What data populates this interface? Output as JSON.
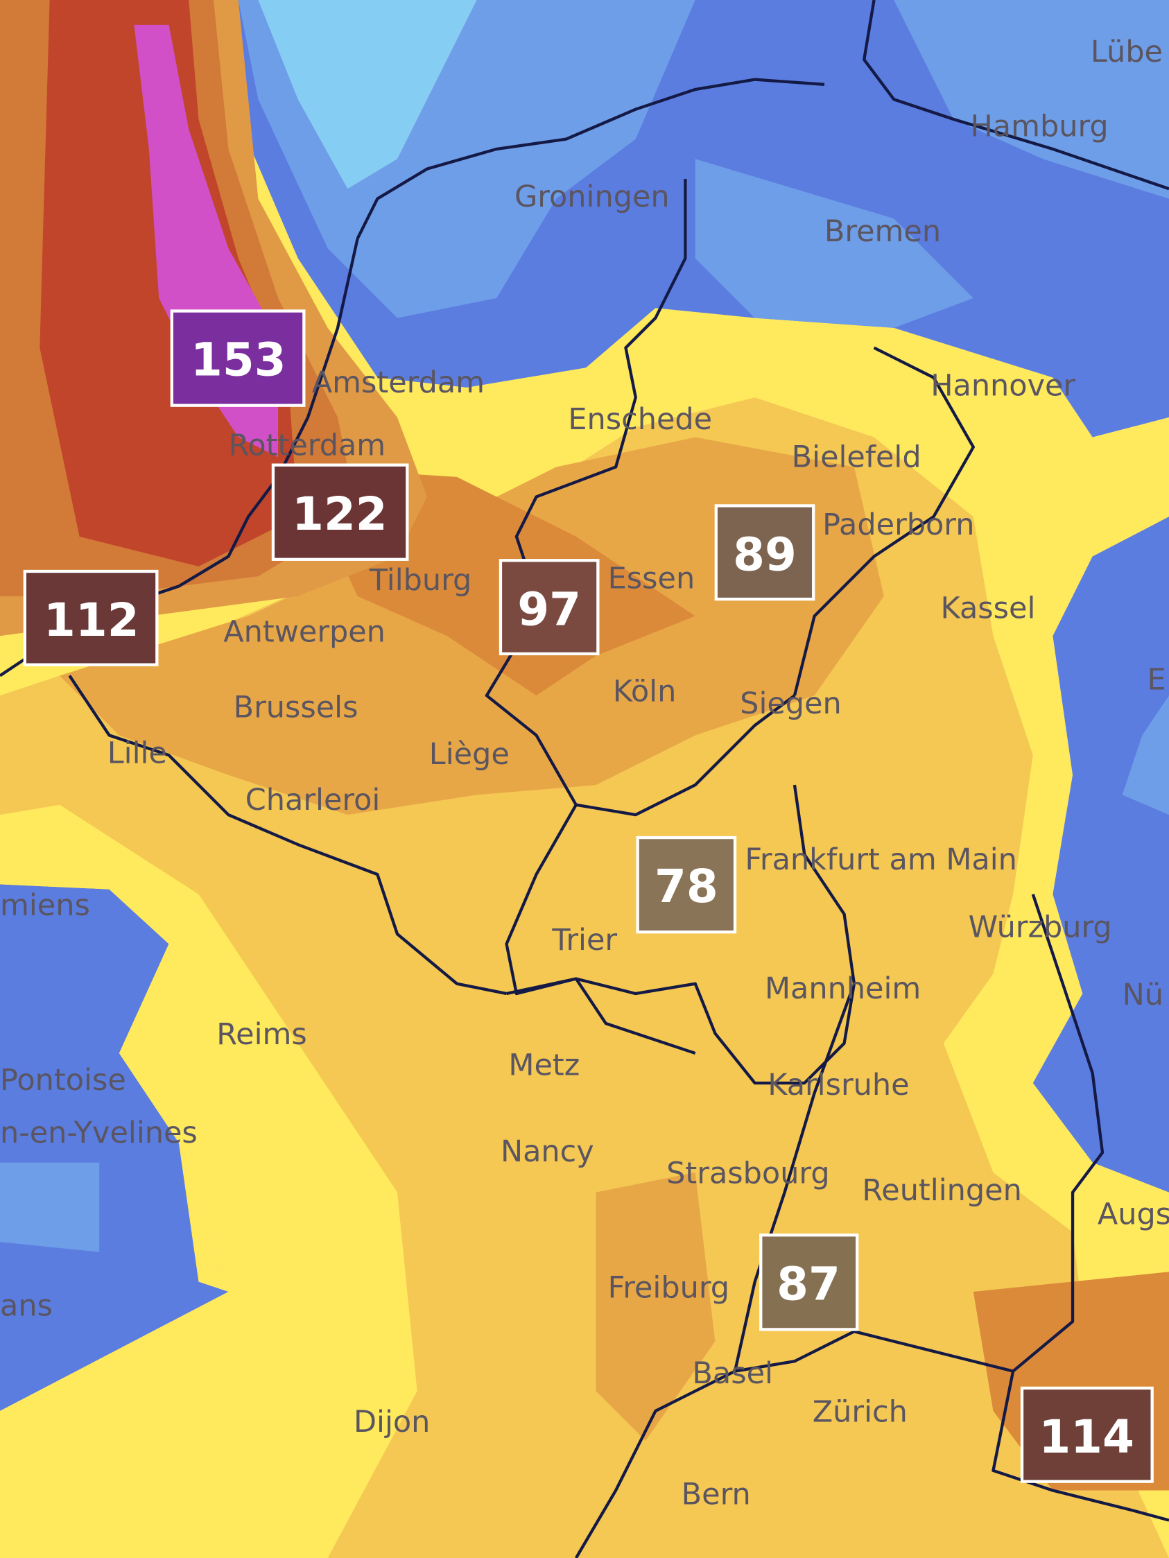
{
  "colors": {
    "deep_blue": "#5b7de0",
    "mid_blue": "#6f9ee9",
    "light_blue": "#86cdf4",
    "yellow": "#ffea5e",
    "light_orange": "#f4c853",
    "orange": "#e8a747",
    "dark_orange": "#db8a3a",
    "red": "#c1452a",
    "magenta": "#d150c8",
    "border": "#141a45"
  },
  "cities": [
    "Lübe",
    "Hamburg",
    "Groningen",
    "Bremen",
    "Amsterdam",
    "Hannover",
    "Enschede",
    "Bielefeld",
    "Rotterdam",
    "Paderborn",
    "Tilburg",
    "Essen",
    "Kassel",
    "Antwerpen",
    "Köln",
    "Siegen",
    "Brussels",
    "E",
    "Liège",
    "Lille",
    "Charleroi",
    "Frankfurt am Main",
    "miens",
    "Würzburg",
    "Trier",
    "Mannheim",
    "Nü",
    "Reims",
    "Metz",
    "Pontoise",
    "n-en-Yvelines",
    "Karlsruhe",
    "Nancy",
    "Strasbourg",
    "Reutlingen",
    "Augs",
    "Freiburg",
    "ans",
    "Basel",
    "Zürich",
    "Dijon",
    "Bern"
  ],
  "values": [
    {
      "value": "153",
      "color": "#7b2f9e"
    },
    {
      "value": "122",
      "color": "#6b3535"
    },
    {
      "value": "112",
      "color": "#6b3838"
    },
    {
      "value": "97",
      "color": "#7a4a40"
    },
    {
      "value": "89",
      "color": "#7c6450"
    },
    {
      "value": "78",
      "color": "#8a7458"
    },
    {
      "value": "87",
      "color": "#857052"
    },
    {
      "value": "114",
      "color": "#6e4038"
    }
  ]
}
